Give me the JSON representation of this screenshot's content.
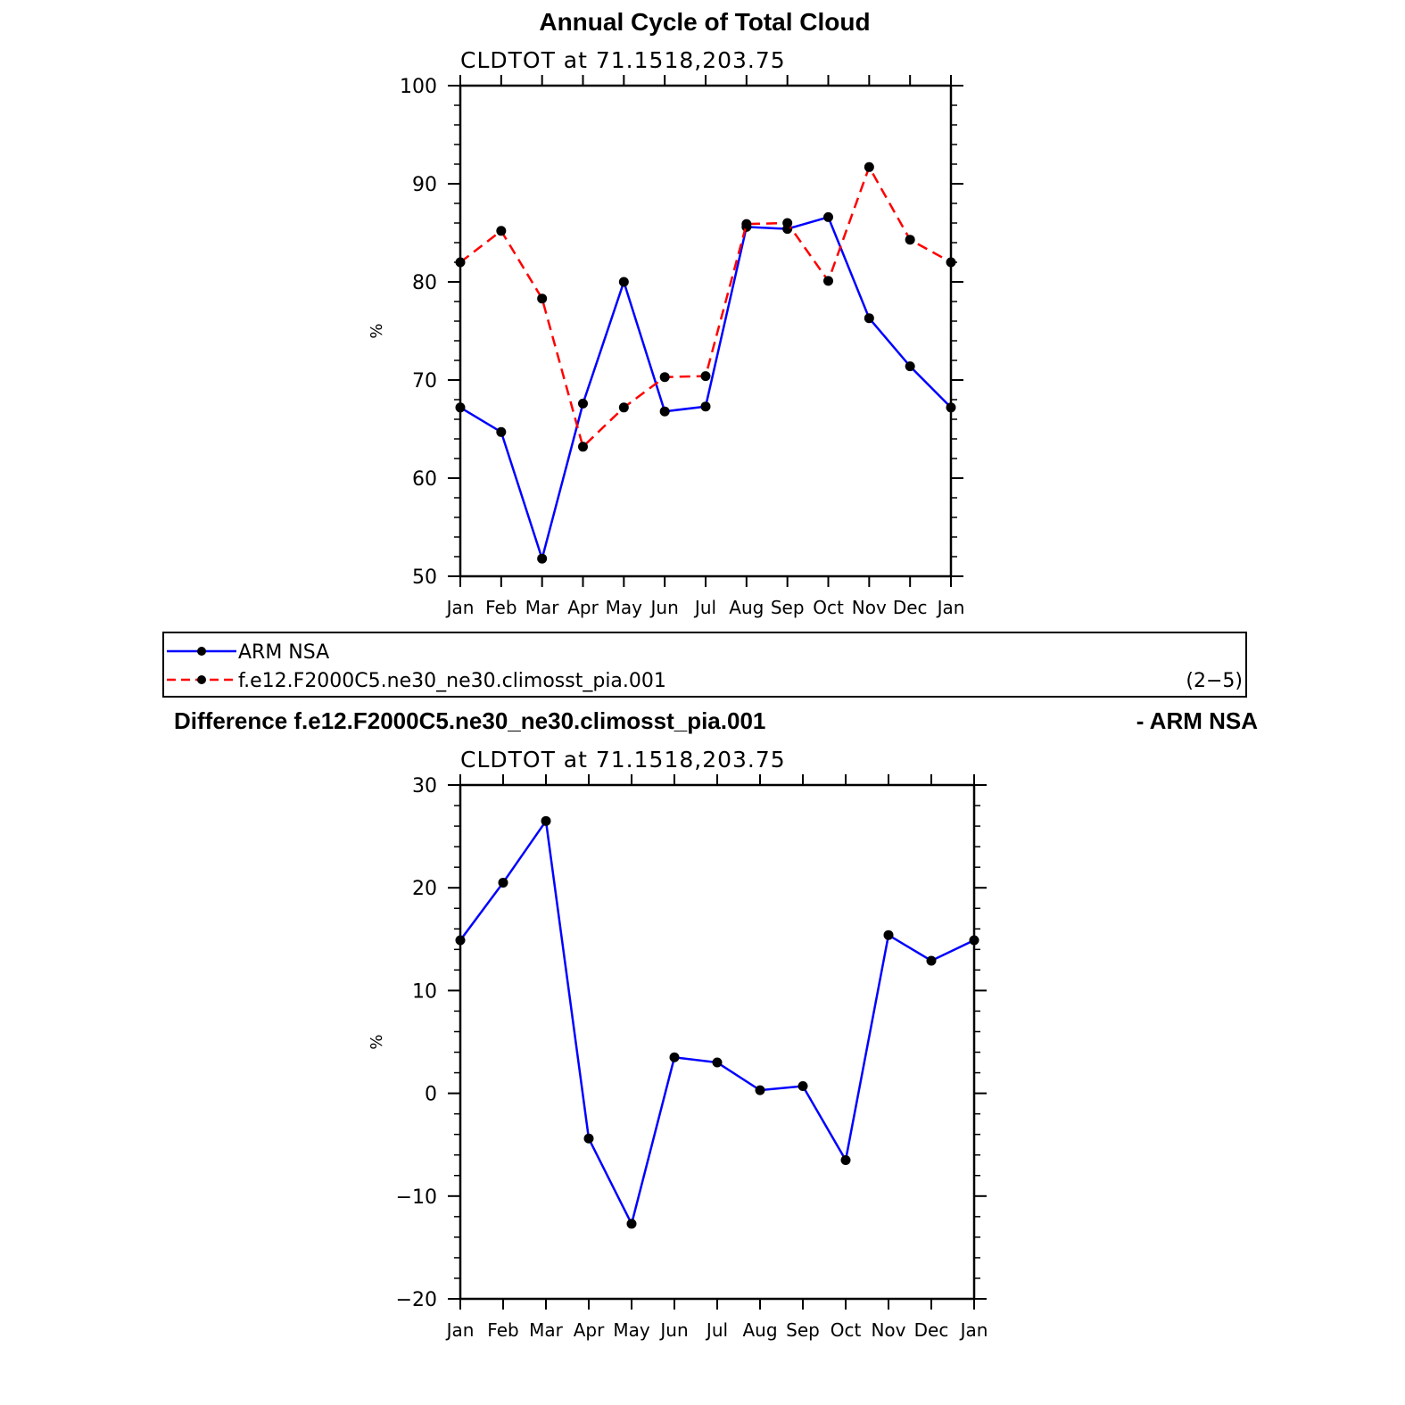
{
  "top_title": "Annual Cycle of Total Cloud",
  "diff_title_left": "Difference f.e12.F2000C5.ne30_ne30.climosst_pia.001",
  "diff_title_right": "- ARM NSA",
  "legend": {
    "items": [
      "ARM NSA",
      "f.e12.F2000C5.ne30_ne30.climosst_pia.001"
    ],
    "panel_id": "(2−5)"
  },
  "colors": {
    "obs": "#0000ff",
    "model": "#ff0000",
    "marker": "#000000"
  },
  "chart_data": [
    {
      "type": "line",
      "subtitle": "CLDTOT at 71.1518,203.75",
      "ylabel": "%",
      "categories": [
        "Jan",
        "Feb",
        "Mar",
        "Apr",
        "May",
        "Jun",
        "Jul",
        "Aug",
        "Sep",
        "Oct",
        "Nov",
        "Dec",
        "Jan"
      ],
      "ylim": [
        50,
        100
      ],
      "yticks": [
        50,
        60,
        70,
        80,
        90,
        100
      ],
      "series": [
        {
          "name": "ARM NSA",
          "style": "solid",
          "values": [
            67.2,
            64.7,
            51.8,
            67.6,
            80.0,
            66.8,
            67.3,
            85.6,
            85.4,
            86.6,
            76.3,
            71.4,
            67.2
          ]
        },
        {
          "name": "f.e12.F2000C5.ne30_ne30.climosst_pia.001",
          "style": "dashed",
          "values": [
            82.0,
            85.2,
            78.3,
            63.2,
            67.2,
            70.3,
            70.4,
            85.9,
            86.0,
            80.1,
            91.7,
            84.3,
            82.0
          ]
        }
      ]
    },
    {
      "type": "line",
      "subtitle": "CLDTOT at 71.1518,203.75",
      "ylabel": "%",
      "categories": [
        "Jan",
        "Feb",
        "Mar",
        "Apr",
        "May",
        "Jun",
        "Jul",
        "Aug",
        "Sep",
        "Oct",
        "Nov",
        "Dec",
        "Jan"
      ],
      "ylim": [
        -20,
        30
      ],
      "yticks": [
        -20,
        -10,
        0,
        10,
        20,
        30
      ],
      "series": [
        {
          "style": "solid",
          "values": [
            14.9,
            20.5,
            26.5,
            -4.4,
            -12.7,
            3.5,
            3.0,
            0.3,
            0.7,
            -6.5,
            15.4,
            12.9,
            14.9
          ]
        }
      ]
    }
  ]
}
